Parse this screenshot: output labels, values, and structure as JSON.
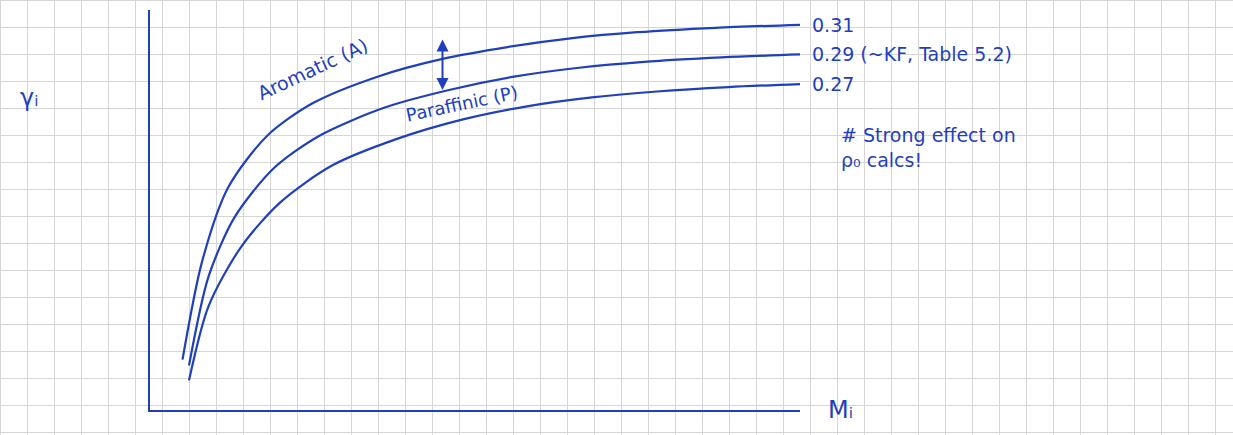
{
  "chart_data": {
    "type": "line",
    "x_label": "Mᵢ",
    "y_label": "γᵢ",
    "xlim": [
      0,
      100
    ],
    "ylim": [
      0.05,
      0.32
    ],
    "xticks": [],
    "yticks": [],
    "tick_labels": false,
    "grid": false,
    "line_style": "solid",
    "annotations": [
      "# Strong effect on ρ₀ calcs!"
    ],
    "series": [
      {
        "name": "Aromatic (A)",
        "color": "#1f3fbf",
        "x": [
          5,
          8,
          12,
          18,
          25,
          35,
          45,
          55,
          65,
          75,
          87,
          100
        ],
        "values": [
          0.084,
          0.15,
          0.2,
          0.235,
          0.257,
          0.275,
          0.287,
          0.295,
          0.301,
          0.305,
          0.308,
          0.31
        ],
        "value_labels": [
          null,
          null,
          null,
          null,
          null,
          null,
          null,
          null,
          null,
          null,
          null,
          "0.31"
        ]
      },
      {
        "color": "#1f3fbf",
        "x": [
          6,
          9,
          13,
          19,
          26,
          36,
          46,
          56,
          66,
          76,
          88,
          100
        ],
        "values": [
          0.08,
          0.14,
          0.18,
          0.213,
          0.235,
          0.254,
          0.266,
          0.275,
          0.281,
          0.285,
          0.288,
          0.29
        ],
        "value_labels": [
          null,
          null,
          null,
          null,
          null,
          null,
          null,
          null,
          null,
          null,
          null,
          "0.29 (~KF, Table 5.2)"
        ]
      },
      {
        "name": "Paraffinic (P)",
        "color": "#1f3fbf",
        "x": [
          6,
          9,
          14,
          20,
          28,
          38,
          48,
          58,
          68,
          78,
          89,
          100
        ],
        "values": [
          0.07,
          0.12,
          0.16,
          0.19,
          0.215,
          0.233,
          0.246,
          0.255,
          0.261,
          0.265,
          0.268,
          0.27
        ],
        "value_labels": [
          null,
          null,
          null,
          null,
          null,
          null,
          null,
          null,
          null,
          null,
          null,
          "0.27"
        ]
      }
    ]
  }
}
